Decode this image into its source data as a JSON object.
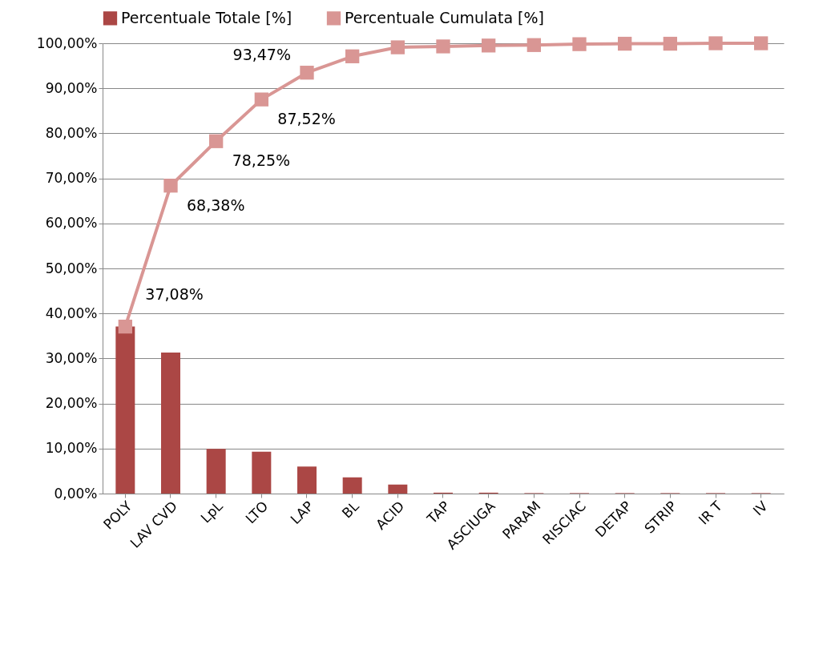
{
  "chart_data": {
    "type": "bar",
    "categories": [
      "POLY",
      "LAV CVD",
      "LpL",
      "LTO",
      "LAP",
      "BL",
      "ACID",
      "TAP",
      "ASCIUGA",
      "PARAM",
      "RISCIAC",
      "DETAP",
      "STRIP",
      "IR T",
      "IV"
    ],
    "series": [
      {
        "name": "Percentuale Totale [%]",
        "color": "#ab4745",
        "values": [
          37.1,
          31.3,
          9.9,
          9.3,
          6.0,
          3.6,
          2.0,
          0.2,
          0.2,
          0.1,
          0.1,
          0.1,
          0.1,
          0.1,
          0.1
        ]
      },
      {
        "name": "Percentuale Cumulata [%]",
        "type": "line",
        "color": "#d99694",
        "marker": "square",
        "values": [
          37.08,
          68.38,
          78.25,
          87.52,
          93.47,
          97.1,
          99.1,
          99.3,
          99.5,
          99.6,
          99.8,
          99.9,
          99.9,
          100,
          100
        ],
        "value_labels": [
          "37,08%",
          "68,38%",
          "78,25%",
          "87,52%",
          "93,47%",
          null,
          null,
          null,
          null,
          null,
          null,
          null,
          null,
          null,
          null
        ]
      }
    ],
    "ylim": [
      0,
      100
    ],
    "yticks": [
      {
        "value": 0,
        "label": "0,00%"
      },
      {
        "value": 10,
        "label": "10,00%"
      },
      {
        "value": 20,
        "label": "20,00%"
      },
      {
        "value": 30,
        "label": "30,00%"
      },
      {
        "value": 40,
        "label": "40,00%"
      },
      {
        "value": 50,
        "label": "50,00%"
      },
      {
        "value": 60,
        "label": "60,00%"
      },
      {
        "value": 70,
        "label": "70,00%"
      },
      {
        "value": 80,
        "label": "80,00%"
      },
      {
        "value": 90,
        "label": "90,00%"
      },
      {
        "value": 100,
        "label": "100,00%"
      }
    ],
    "grid": "y",
    "legend": "top"
  }
}
